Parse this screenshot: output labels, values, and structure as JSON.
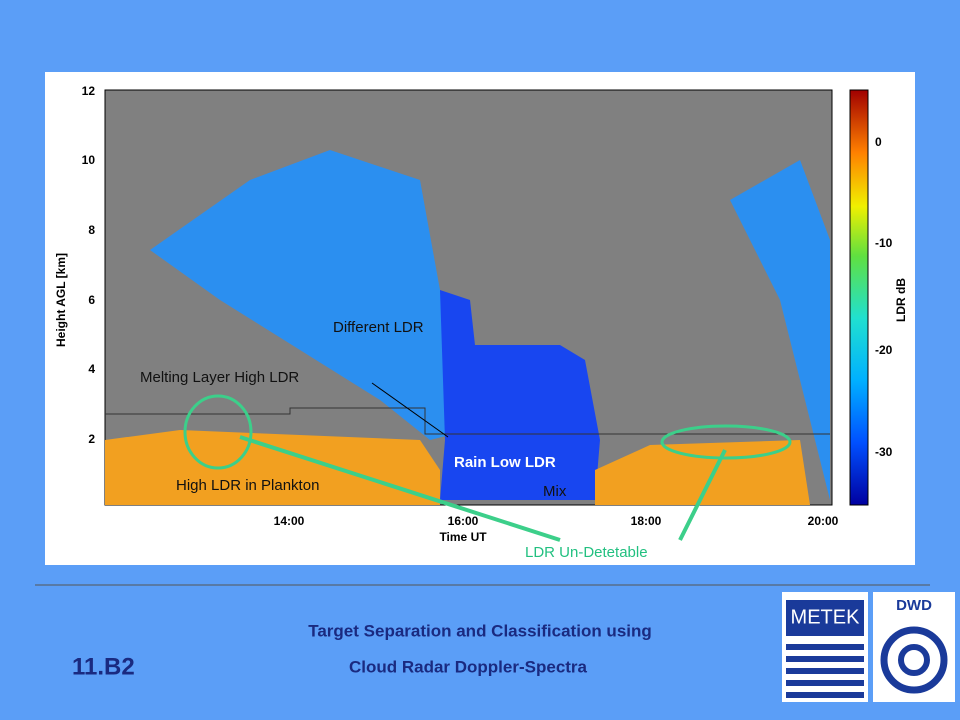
{
  "figure": {
    "y_label": "Height AGL [km]",
    "y_ticks": [
      "12",
      "10",
      "8",
      "6",
      "4",
      "2"
    ],
    "x_label": "Time UT",
    "x_ticks": [
      "14:00",
      "16:00",
      "18:00",
      "20:00"
    ],
    "colorbar_label": "LDR dB",
    "colorbar_ticks": [
      "0",
      "-10",
      "-20",
      "-30"
    ],
    "annotations": [
      "Different LDR",
      "Melting Layer High LDR",
      "Rain Low LDR",
      "Mix",
      "High LDR in Plankton",
      "LDR Un-Detetable"
    ]
  },
  "footer": {
    "code": "11.B2",
    "title": [
      "Target Separation and Classification using",
      "Cloud Radar Doppler-Spectra"
    ],
    "logos": [
      "METEK",
      "DWD"
    ]
  }
}
